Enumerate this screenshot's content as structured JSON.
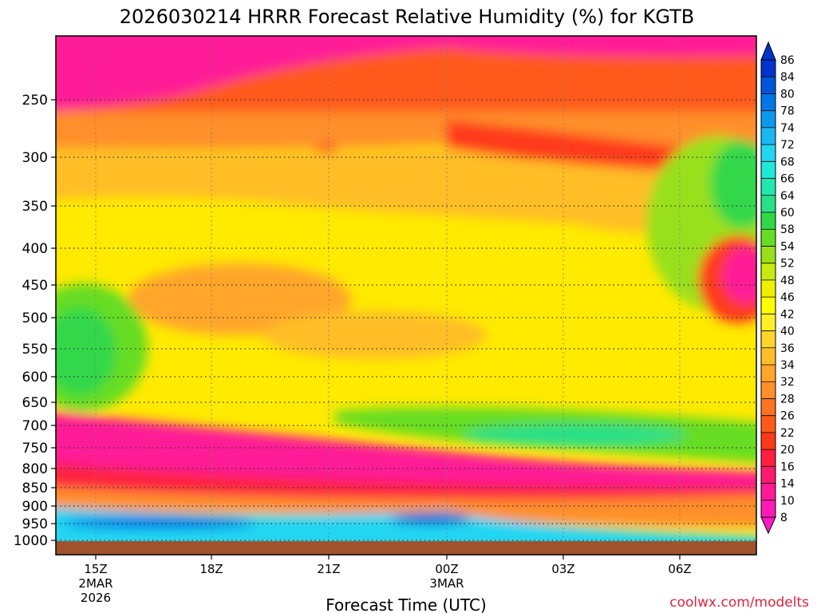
{
  "chart_data": {
    "type": "heatmap",
    "title": "2026030214 HRRR Forecast Relative Humidity (%) for KGTB",
    "xlabel": "Forecast Time (UTC)",
    "ylabel": "",
    "credit": "coolwx.com/modelts",
    "y_axis": {
      "scale": "pressure (inverted, log-like)",
      "ticks": [
        250,
        300,
        350,
        400,
        450,
        500,
        550,
        600,
        650,
        700,
        750,
        800,
        850,
        900,
        950,
        1000
      ],
      "labels": [
        "250",
        "300",
        "350",
        "400",
        "450",
        "500",
        "550",
        "600",
        "650",
        "700",
        "750",
        "800",
        "850",
        "900",
        "950",
        "1000"
      ]
    },
    "x_axis": {
      "ticks": [
        {
          "label": "15Z",
          "date": "2MAR",
          "year": "2026"
        },
        {
          "label": "18Z",
          "date": "",
          "year": ""
        },
        {
          "label": "21Z",
          "date": "",
          "year": ""
        },
        {
          "label": "00Z",
          "date": "3MAR",
          "year": ""
        },
        {
          "label": "03Z",
          "date": "",
          "year": ""
        },
        {
          "label": "06Z",
          "date": "",
          "year": ""
        }
      ]
    },
    "grid": true,
    "colorbar": {
      "levels": [
        86,
        84,
        80,
        78,
        74,
        72,
        68,
        66,
        64,
        60,
        58,
        54,
        52,
        48,
        46,
        42,
        40,
        36,
        34,
        32,
        28,
        26,
        22,
        20,
        16,
        14,
        10,
        8
      ],
      "colors": [
        "#0033cc",
        "#0055dd",
        "#0077e6",
        "#0a99ee",
        "#1ab8f2",
        "#22d6f2",
        "#1fe8d8",
        "#22e8b0",
        "#28e088",
        "#30d848",
        "#66dd22",
        "#99e01a",
        "#c8ea10",
        "#eef000",
        "#ffff00",
        "#fff02a",
        "#ffd52a",
        "#ffbe28",
        "#ffa62a",
        "#ff8f2a",
        "#ff7420",
        "#ff5a1a",
        "#ff3a1a",
        "#ff2040",
        "#ff1a70",
        "#ff1a96",
        "#ff1ab8"
      ]
    },
    "observations": [
      {
        "level": "200-250",
        "rh_range": [
          8,
          16
        ]
      },
      {
        "level": "250-300",
        "rh_range": [
          20,
          32
        ]
      },
      {
        "level": "300-650",
        "rh_range": [
          34,
          48
        ]
      },
      {
        "level": "500-600 early",
        "rh_range": [
          54,
          66
        ]
      },
      {
        "level": "700-750 late",
        "rh_range": [
          54,
          64
        ]
      },
      {
        "level": "400-500 late",
        "rh_range": [
          8,
          22
        ]
      },
      {
        "level": "750-850",
        "rh_range": [
          8,
          16
        ]
      },
      {
        "level": "850-900",
        "rh_range": [
          16,
          22
        ]
      },
      {
        "level": "920-960",
        "rh_range": [
          72,
          86
        ]
      }
    ]
  }
}
